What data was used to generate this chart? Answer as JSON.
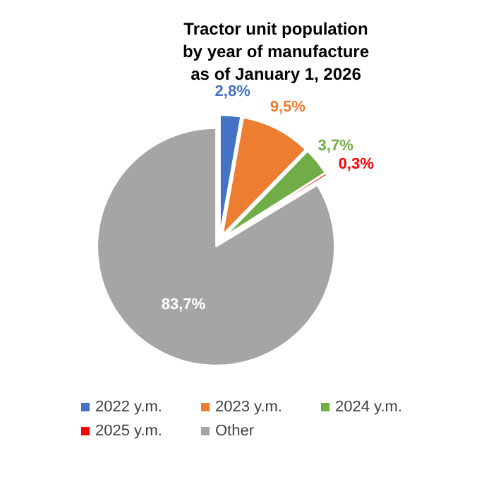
{
  "chart_data": {
    "type": "pie",
    "title": "Tractor unit population\nby year of manufacture\nas of January 1, 2026",
    "categories": [
      "2022 y.m.",
      "2023 y.m.",
      "2024 y.m.",
      "2025 y.m.",
      "Other"
    ],
    "values": [
      2.8,
      9.5,
      3.7,
      0.3,
      83.7
    ],
    "colors": [
      "#4472c4",
      "#ed7d31",
      "#70ad47",
      "#ff0000",
      "#a5a5a5"
    ],
    "value_labels": [
      "2,8%",
      "9,5%",
      "3,7%",
      "0,3%",
      "83,7%"
    ],
    "legend": "bottom"
  }
}
